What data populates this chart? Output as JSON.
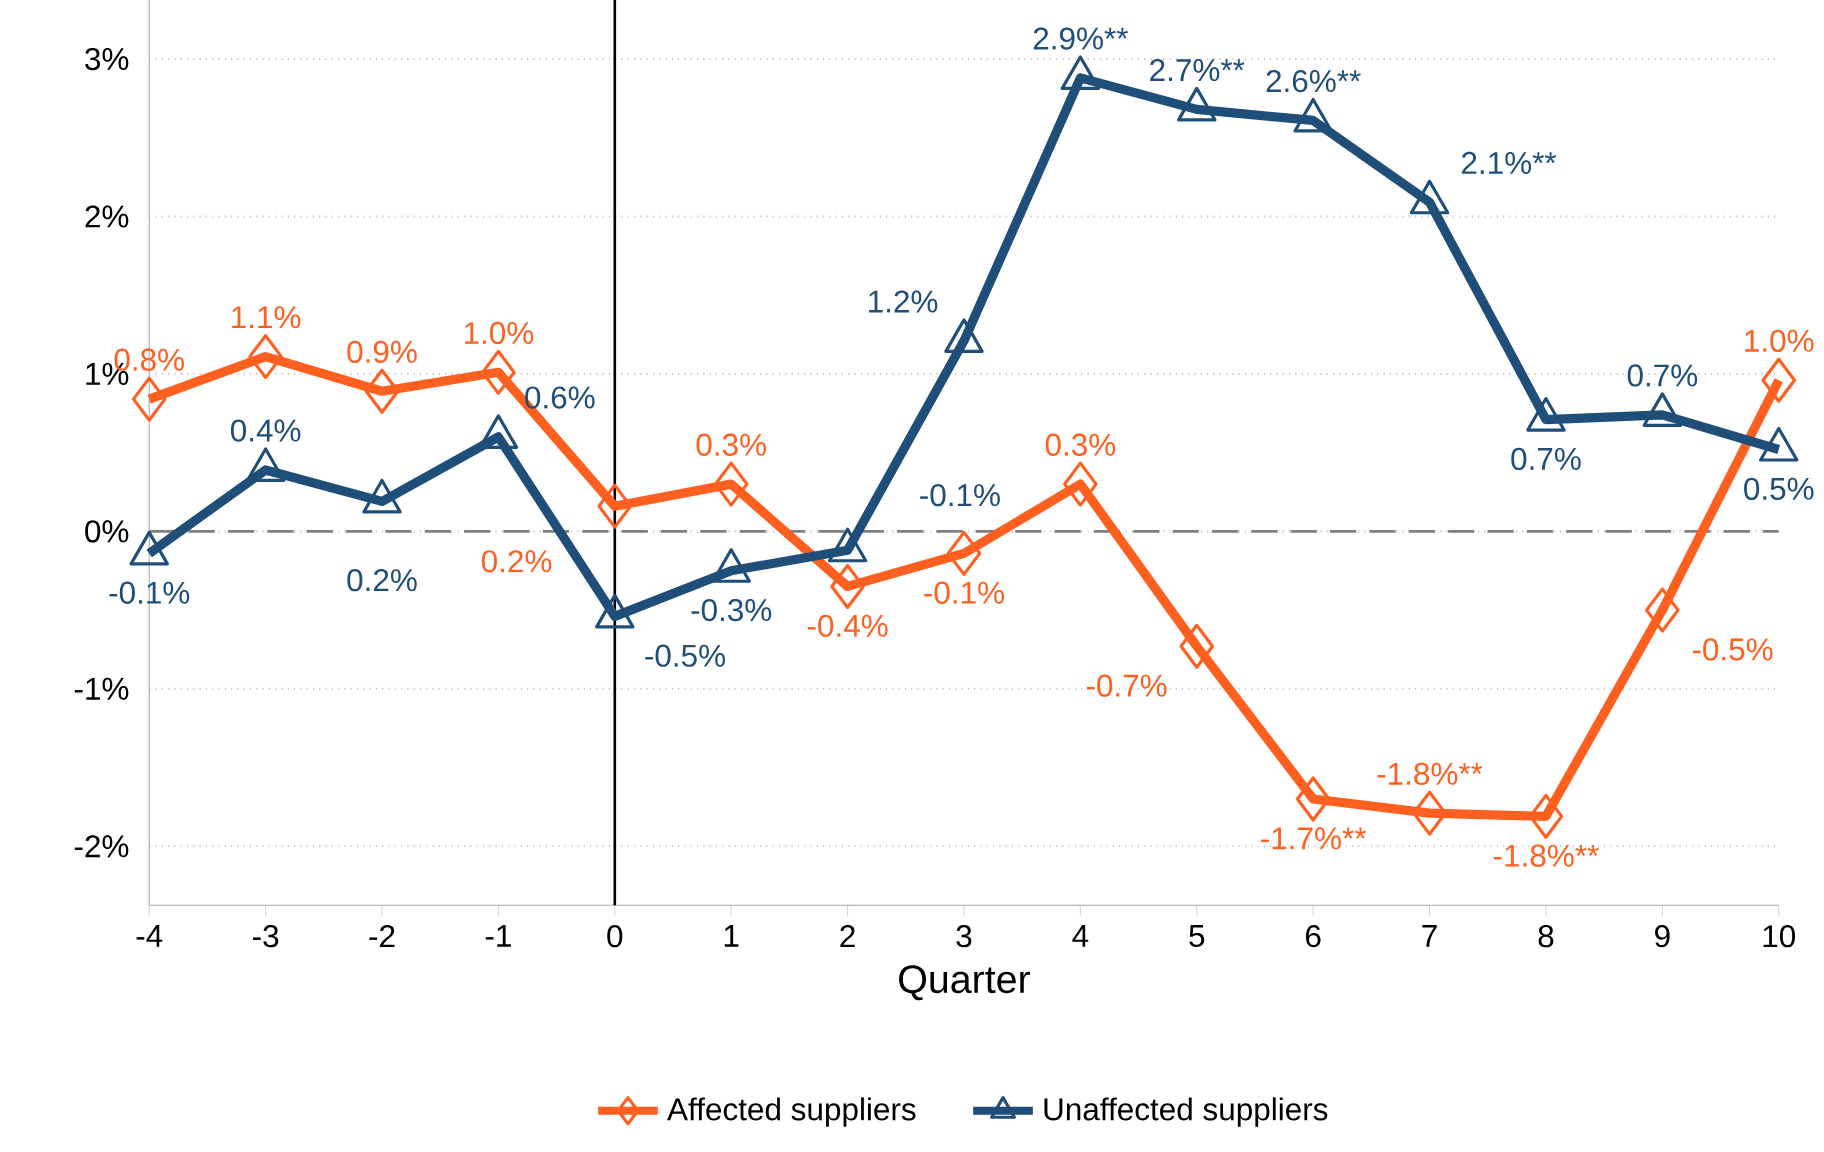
{
  "chart_data": {
    "type": "line",
    "xlabel": "Quarter",
    "x": [
      -4,
      -3,
      -2,
      -1,
      0,
      1,
      2,
      3,
      4,
      5,
      6,
      7,
      8,
      9,
      10
    ],
    "xlim": [
      -4,
      10
    ],
    "xticks": [
      -4,
      -3,
      -2,
      -1,
      0,
      1,
      2,
      3,
      4,
      5,
      6,
      7,
      8,
      9,
      10
    ],
    "ylim": [
      -2.375,
      3.375
    ],
    "yticks": [
      {
        "value": -2,
        "label": "-2%"
      },
      {
        "value": -1,
        "label": "-1%"
      },
      {
        "value": 0,
        "label": "0%"
      },
      {
        "value": 1,
        "label": "1%"
      },
      {
        "value": 2,
        "label": "2%"
      },
      {
        "value": 3,
        "label": "3%"
      }
    ],
    "grid": "y",
    "legend": "bottom",
    "line_style": "solid",
    "ref_lines": [
      {
        "axis": "y",
        "value": 0,
        "color": "#808080",
        "line_style": "dashed"
      },
      {
        "axis": "x",
        "value": 0,
        "color": "#000000",
        "line_style": "solid"
      }
    ],
    "series": [
      {
        "name": "Affected suppliers",
        "color": "#ff5f1f",
        "marker": "diamond",
        "values": [
          0.84,
          1.11,
          0.89,
          1.01,
          0.16,
          0.3,
          -0.35,
          -0.14,
          0.3,
          -0.73,
          -1.7,
          -1.79,
          -1.81,
          -0.5,
          0.96
        ],
        "value_labels": [
          "0.8%",
          "1.1%",
          "0.9%",
          "1.0%",
          "0.2%",
          "0.3%",
          "-0.4%",
          "-0.1%",
          "0.3%",
          "-0.7%",
          "-1.7%**",
          "-1.8%**",
          "-1.8%**",
          "-0.5%",
          "1.0%"
        ]
      },
      {
        "name": "Unaffected suppliers",
        "color": "#1f4e79",
        "marker": "triangle",
        "values": [
          -0.14,
          0.39,
          0.19,
          0.6,
          -0.54,
          -0.25,
          -0.12,
          1.21,
          2.88,
          2.68,
          2.61,
          2.09,
          0.71,
          0.74,
          0.52
        ],
        "value_labels": [
          "-0.1%",
          "0.4%",
          "0.2%",
          "0.6%",
          "-0.5%",
          "-0.3%",
          "-0.1%",
          "1.2%",
          "2.9%**",
          "2.7%**",
          "2.6%**",
          "2.1%**",
          "0.7%",
          "0.7%",
          "0.5%"
        ]
      }
    ]
  }
}
